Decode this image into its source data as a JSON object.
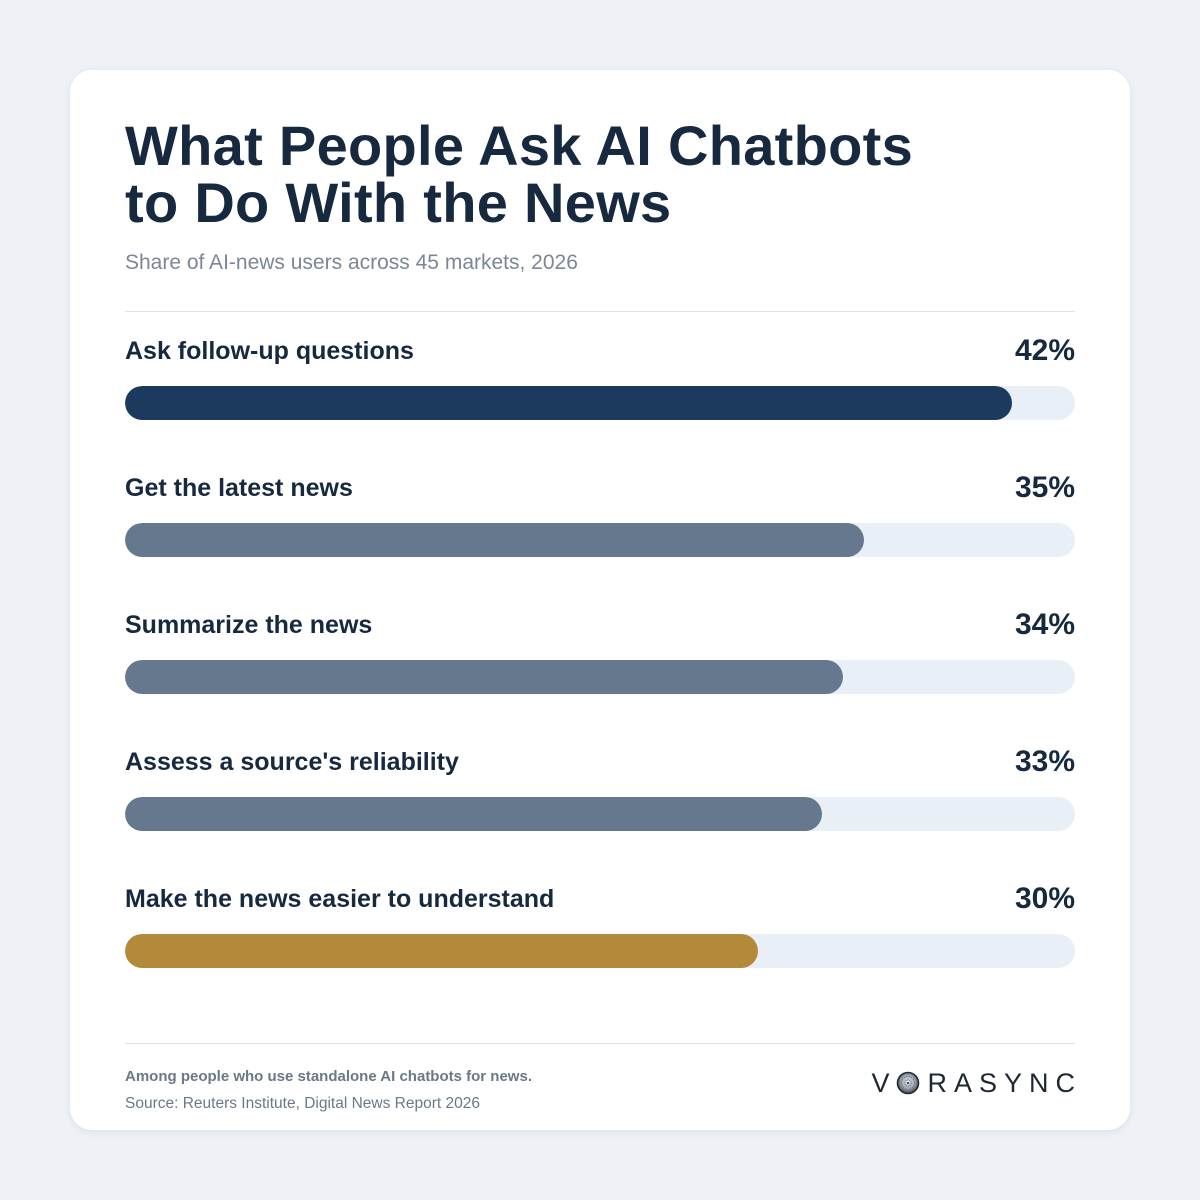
{
  "chart_data": {
    "type": "bar",
    "orientation": "horizontal",
    "title": "What People Ask AI Chatbots to Do With the News",
    "subtitle": "Share of AI-news users across 45 markets, 2026",
    "categories": [
      "Ask follow-up questions",
      "Get the latest news",
      "Summarize the news",
      "Assess a source's reliability",
      "Make the news easier to understand"
    ],
    "values": [
      42,
      35,
      34,
      33,
      30
    ],
    "unit": "%",
    "xlim": [
      0,
      45
    ],
    "grid": false,
    "bar_colors": [
      "#1b3a5e",
      "#66788e",
      "#66788e",
      "#66788e",
      "#b3893a"
    ],
    "track_color": "#e8eff6"
  },
  "footer": {
    "note": "Among people who use standalone AI chatbots for news.",
    "source": "Source: Reuters Institute, Digital News Report 2026"
  },
  "logo": {
    "text": "VORASYNC"
  },
  "colors": {
    "background": "#eef1f5",
    "card": "#ffffff",
    "text": "#17293f",
    "muted": "#7b8796"
  }
}
